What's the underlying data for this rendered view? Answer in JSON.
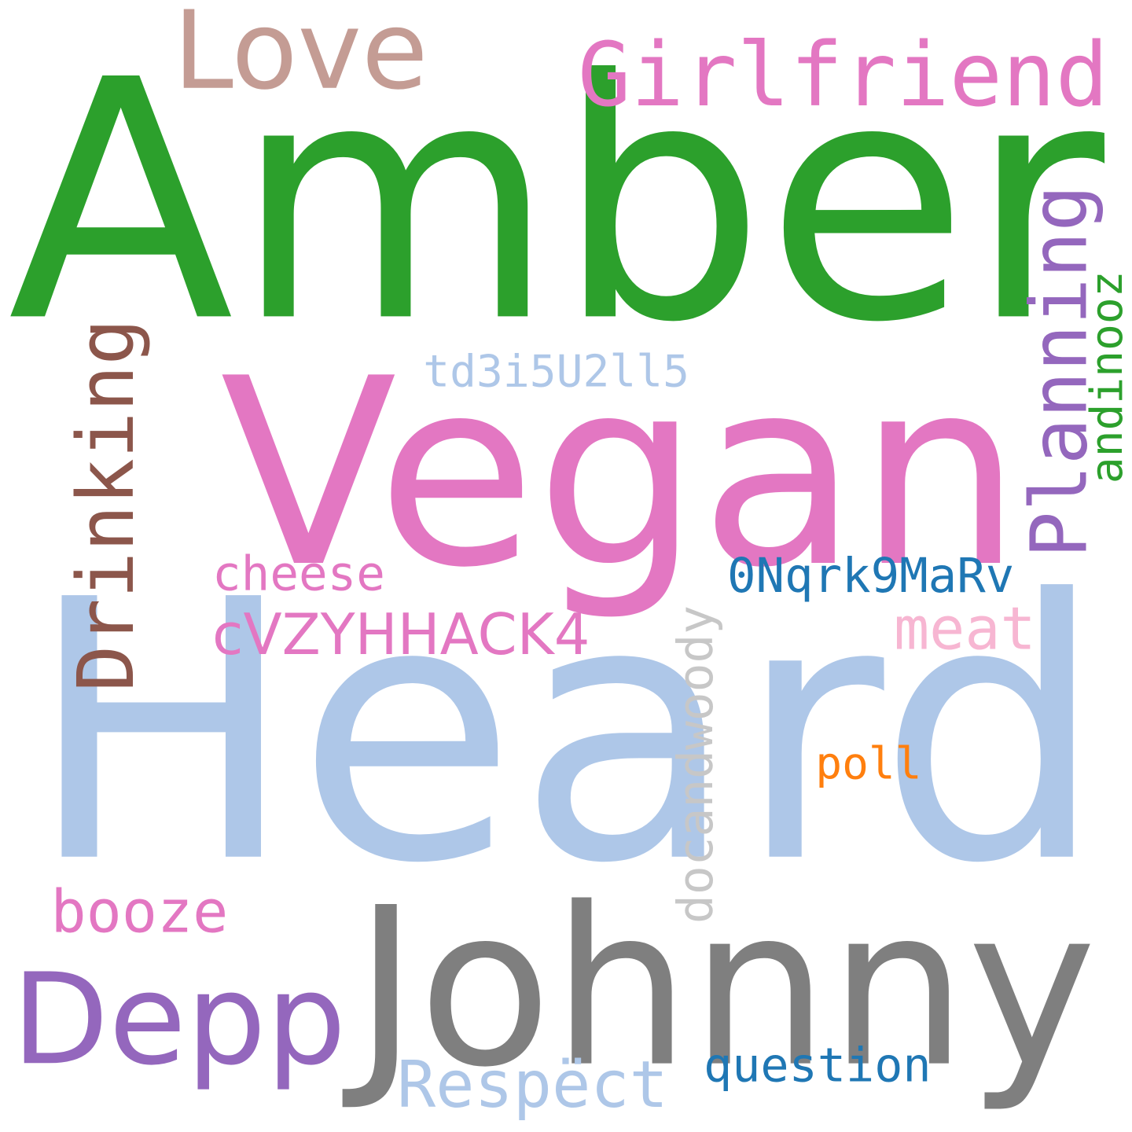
{
  "words": {
    "amber": {
      "text": "Amber",
      "color": "#2ca02c"
    },
    "heard": {
      "text": "Heard",
      "color": "#aec7e8"
    },
    "vegan": {
      "text": "Vegan",
      "color": "#e377c2"
    },
    "johnny": {
      "text": "Johnny",
      "color": "#7f7f7f"
    },
    "depp": {
      "text": "Depp",
      "color": "#9467bd"
    },
    "love": {
      "text": "Love",
      "color": "#c49c94"
    },
    "girlfriend": {
      "text": "Girlfriend",
      "color": "#e377c2"
    },
    "drinking": {
      "text": "Drinking",
      "color": "#8c564b"
    },
    "planning": {
      "text": "Planning",
      "color": "#9467bd"
    },
    "respect": {
      "text": "Respëct",
      "color": "#aec7e8"
    },
    "booze": {
      "text": "booze",
      "color": "#e377c2"
    },
    "meat": {
      "text": "meat",
      "color": "#f7b6d2"
    },
    "cvzy": {
      "text": "cVZYHHACK4",
      "color": "#e377c2"
    },
    "question": {
      "text": "question",
      "color": "#1f77b4"
    },
    "onqrk": {
      "text": "0Nqrk9MaRv",
      "color": "#1f77b4"
    },
    "cheese": {
      "text": "cheese",
      "color": "#e377c2"
    },
    "td3": {
      "text": "td3i5U2ll5",
      "color": "#aec7e8"
    },
    "docand": {
      "text": "docandwoody",
      "color": "#c7c7c7"
    },
    "andinooz": {
      "text": "andinooz",
      "color": "#2ca02c"
    },
    "poll": {
      "text": "poll",
      "color": "#ff7f0e"
    }
  }
}
